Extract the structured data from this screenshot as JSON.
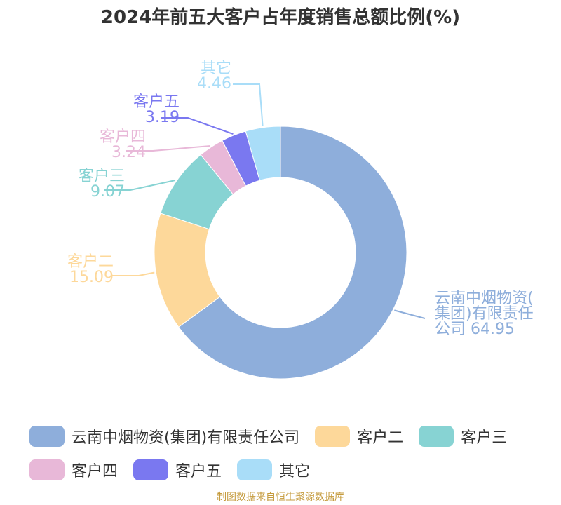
{
  "title": "2024年前五大客户占年度销售总额比例(%)",
  "source": "制图数据来自恒生聚源数据库",
  "chart_data": {
    "type": "pie",
    "title": "2024年前五大客户占年度销售总额比例(%)",
    "series": [
      {
        "name": "云南中烟物资(集团)有限责任公司",
        "label_lines": [
          "云南中烟物资(",
          "集团)有限责任",
          "公司 64.95"
        ],
        "value": 64.95,
        "color": "#8eaedb"
      },
      {
        "name": "客户二",
        "label_lines": [
          "客户二",
          "15.09"
        ],
        "value": 15.09,
        "color": "#fdd89a"
      },
      {
        "name": "客户三",
        "label_lines": [
          "客户三",
          "9.07"
        ],
        "value": 9.07,
        "color": "#87d3d3"
      },
      {
        "name": "客户四",
        "label_lines": [
          "客户四",
          "3.24"
        ],
        "value": 3.24,
        "color": "#e8b8d8"
      },
      {
        "name": "客户五",
        "label_lines": [
          "客户五",
          "3.19"
        ],
        "value": 3.19,
        "color": "#7a78f0"
      },
      {
        "name": "其它",
        "label_lines": [
          "其它",
          "4.46"
        ],
        "value": 4.46,
        "color": "#a9ddf8"
      }
    ],
    "legend": "bottom"
  }
}
